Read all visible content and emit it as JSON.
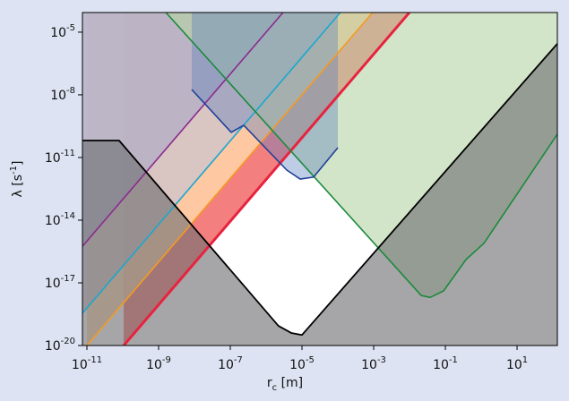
{
  "chart_data": {
    "type": "line",
    "xscale": "log",
    "yscale": "log",
    "x_label": {
      "text": "r",
      "sub": "c",
      "end": " [m]"
    },
    "y_label": {
      "text": "λ [s",
      "sup": "-1",
      "end": "]"
    },
    "xlim": [
      7.5e-12,
      133
    ],
    "ylim": [
      1e-20,
      8.7e-05
    ],
    "xticks": [
      {
        "value": 1e-11,
        "label": "10",
        "power": "-11"
      },
      {
        "value": 1e-09,
        "label": "10",
        "power": "-9"
      },
      {
        "value": 1e-07,
        "label": "10",
        "power": "-7"
      },
      {
        "value": 1e-05,
        "label": "10",
        "power": "-5"
      },
      {
        "value": 0.001,
        "label": "10",
        "power": "-3"
      },
      {
        "value": 0.1,
        "label": "10",
        "power": "-1"
      },
      {
        "value": 10,
        "label": "10",
        "power": "1"
      }
    ],
    "yticks": [
      {
        "value": 1e-20,
        "label": "10",
        "power": "-20"
      },
      {
        "value": 1e-17,
        "label": "10",
        "power": "-17"
      },
      {
        "value": 1e-14,
        "label": "10",
        "power": "-14"
      },
      {
        "value": 1e-11,
        "label": "10",
        "power": "-11"
      },
      {
        "value": 1e-08,
        "label": "10",
        "power": "-8"
      },
      {
        "value": 1e-05,
        "label": "10",
        "power": "-5"
      }
    ],
    "series": [
      {
        "color": "#e8233f",
        "line_width": 3,
        "fill": "above",
        "fill_color": "#f0605f",
        "fill_opacity": 0.8,
        "x": [
          1.06e-10,
          0.0099
        ],
        "values": [
          1e-20,
          8.7e-05
        ]
      },
      {
        "color": "#f59a23",
        "line_width": 1.6,
        "fill": "above",
        "fill_color": "#ffd6a8",
        "fill_opacity": 0.85,
        "x": [
          1e-11,
          0.00093
        ],
        "values": [
          1e-20,
          8.7e-05
        ]
      },
      {
        "color": "#1aa7d0",
        "line_width": 1.6,
        "fill": "above",
        "fill_color": "#c9c3cf",
        "fill_opacity": 0.7,
        "x": [
          7.5e-12,
          0.000117
        ],
        "values": [
          3.5e-19,
          8.7e-05
        ]
      },
      {
        "color": "#8b2b8f",
        "line_width": 1.6,
        "fill": "above",
        "fill_color": "#a9a9c6",
        "fill_opacity": 0.6,
        "x": [
          7.5e-12,
          2.95e-06
        ],
        "values": [
          5.6e-16,
          8.7e-05
        ]
      },
      {
        "color": "#1b8a3c",
        "line_width": 1.6,
        "fill": "above",
        "fill_color": "#b5d4a3",
        "fill_opacity": 0.6,
        "x": [
          1.6e-09,
          0.0211,
          0.0376,
          0.089,
          0.376,
          1.19,
          133
        ],
        "values": [
          8.7e-05,
          2.5e-18,
          2e-18,
          4.1e-18,
          1.3e-16,
          7.8e-16,
          1.3e-10
        ]
      },
      {
        "color": "#1f3f9a",
        "line_width": 1.6,
        "fill": "above",
        "fill_color": "#5f7fbf",
        "fill_opacity": 0.4,
        "x": [
          8.4e-09,
          1.06e-07,
          2.37e-07,
          3.76e-06,
          8.9e-06,
          2.1e-05,
          0.0001
        ],
        "values": [
          1.8e-08,
          1.6e-10,
          3.5e-10,
          2.5e-12,
          9.3e-13,
          1.15e-12,
          2.95e-11
        ]
      },
      {
        "color": "#000000",
        "line_width": 1.8,
        "fill": "below",
        "fill_color": "#6f6f72",
        "fill_opacity": 0.62,
        "x": [
          7.5e-12,
          7.9e-11,
          2.2e-06,
          5e-06,
          1e-05,
          133
        ],
        "values": [
          6.5e-11,
          6.5e-11,
          8.7e-20,
          4e-20,
          3.2e-20,
          2.8e-06
        ]
      }
    ]
  }
}
